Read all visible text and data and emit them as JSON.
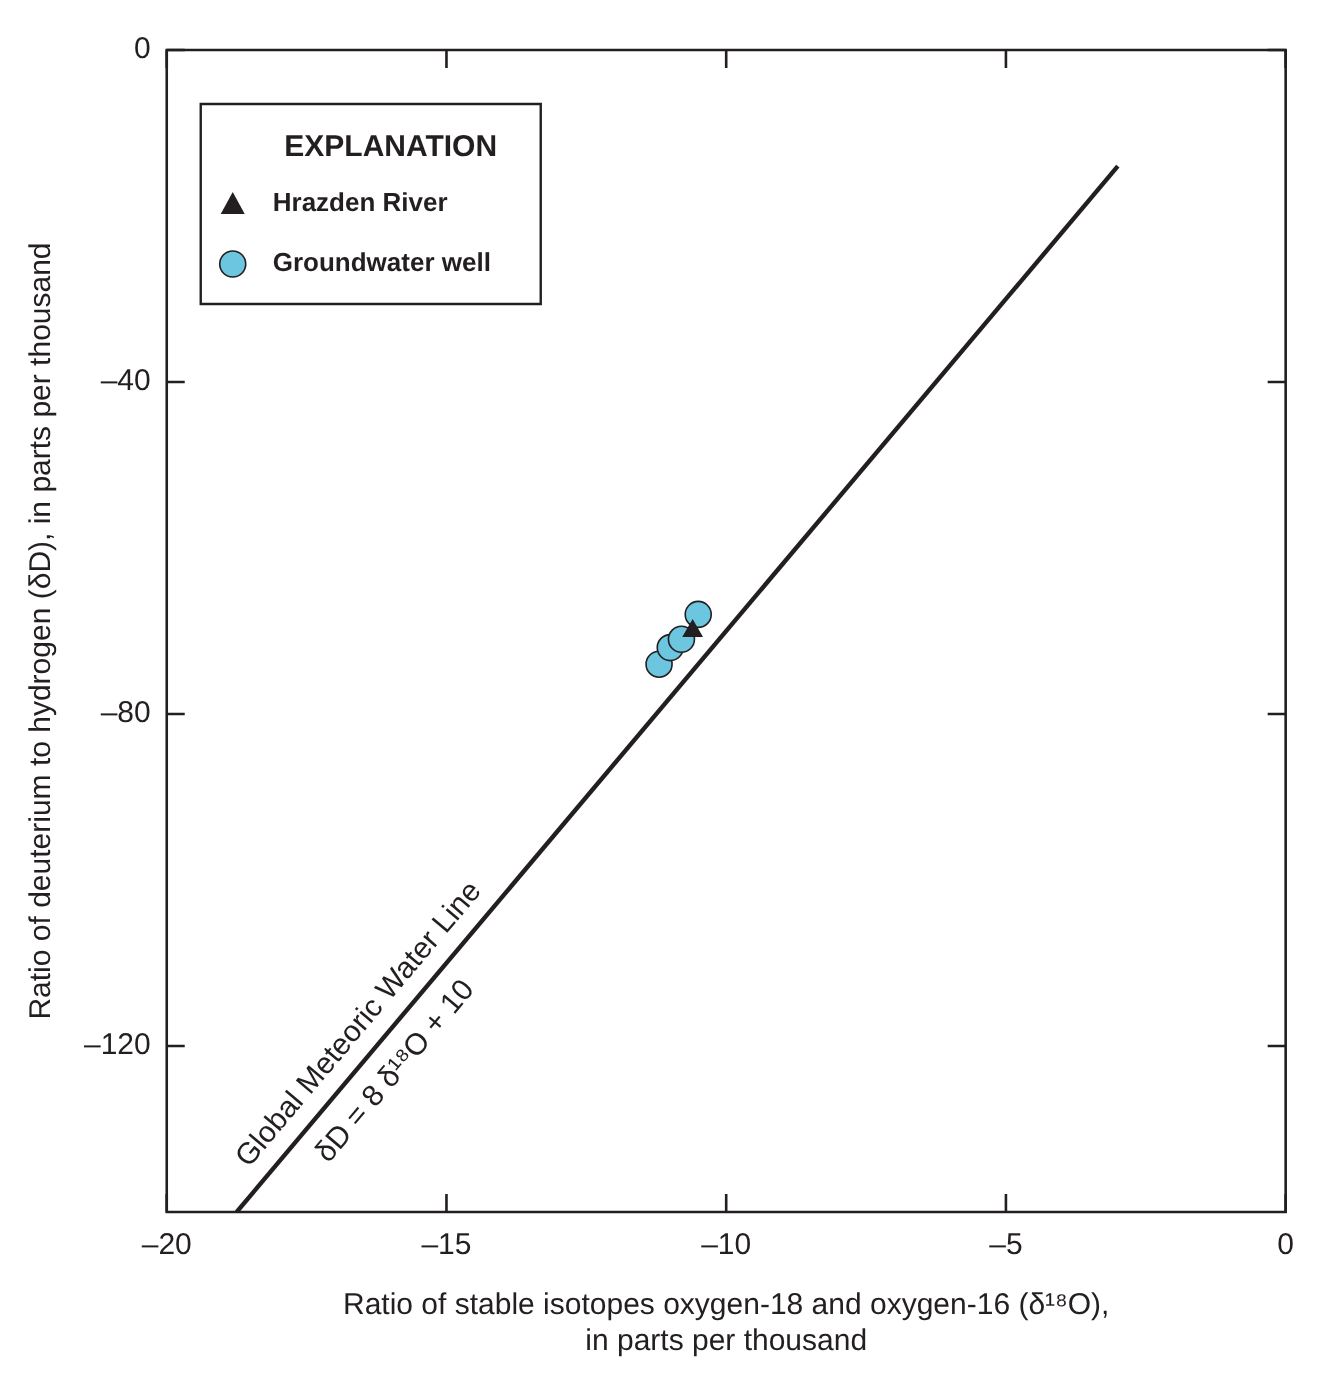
{
  "chart_data": {
    "type": "scatter",
    "xlabel": "Ratio of stable isotopes oxygen-18 and oxygen-16 (δ¹⁸O),\nin parts per thousand",
    "ylabel": "Ratio of deuterium to hydrogen (δD), in parts per thousand",
    "legend_title": "EXPLANATION",
    "legend": "top left",
    "grid": false,
    "xlim": [
      -20,
      0
    ],
    "xticks": [
      {
        "value": -20,
        "label": "–20"
      },
      {
        "value": -15,
        "label": "–15"
      },
      {
        "value": -10,
        "label": "–10"
      },
      {
        "value": -5,
        "label": "–5"
      },
      0
    ],
    "ylim": [
      -140,
      0
    ],
    "yticks": [
      0,
      {
        "value": -40,
        "label": "–40"
      },
      {
        "value": -80,
        "label": "–80"
      },
      {
        "value": -120,
        "label": "–120"
      }
    ],
    "series": [
      {
        "type": "line",
        "color": "#231f20",
        "x": [
          -18.75,
          -3
        ],
        "values": [
          -140,
          -14
        ],
        "marker": "none",
        "line_style": "solid"
      },
      {
        "name": "Hrazden River",
        "type": "scatter",
        "color": "#231f20",
        "marker": "triangle",
        "x": [
          -10.6
        ],
        "values": [
          -70
        ]
      },
      {
        "name": "Groundwater well",
        "type": "scatter",
        "color": "#6cc6e0",
        "marker": "circle",
        "x": [
          -11.2,
          -11.0,
          -10.8,
          -10.5
        ],
        "values": [
          -74,
          -72,
          -71,
          -68
        ]
      }
    ],
    "annotations": [
      "Global Meteoric Water Line",
      "δD = 8 δ¹⁸O + 10"
    ]
  }
}
